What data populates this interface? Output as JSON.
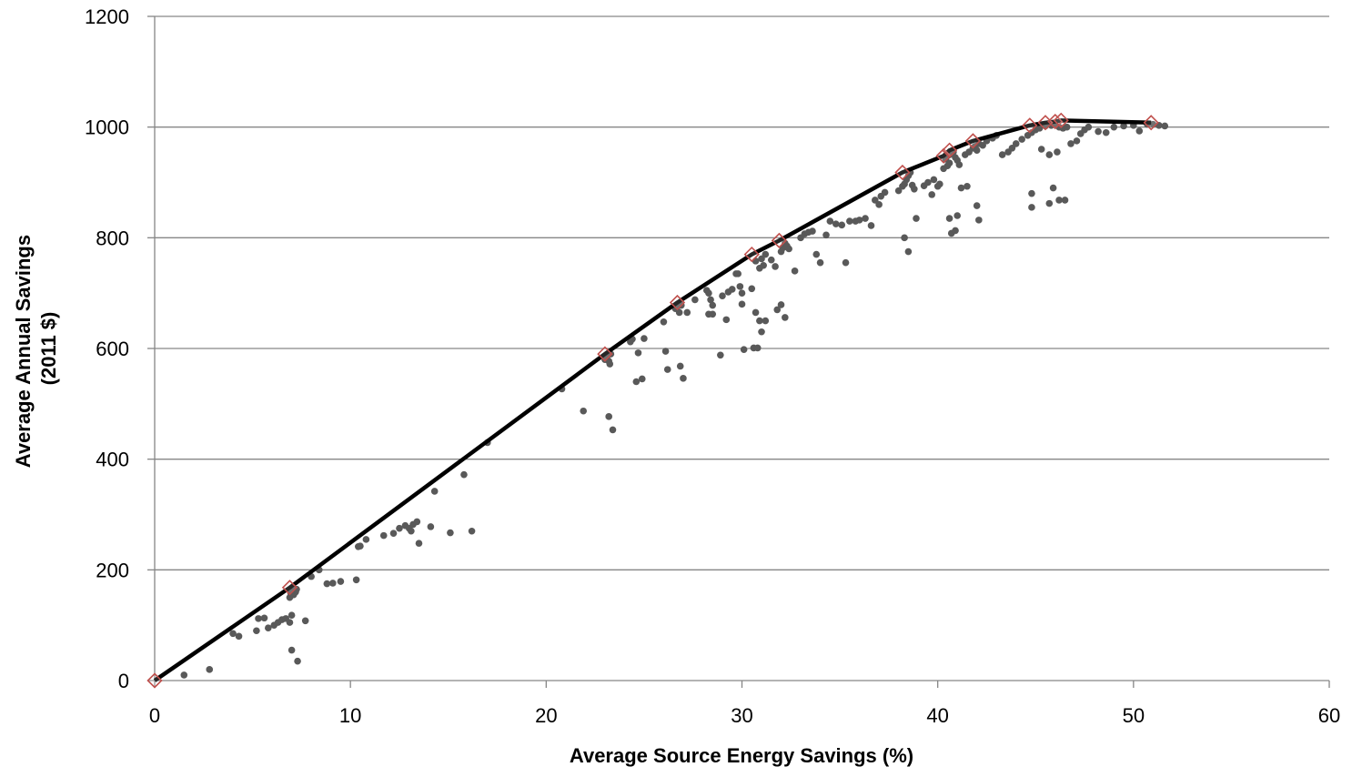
{
  "chart_data": {
    "type": "scatter",
    "xlabel": "Average Source Energy Savings (%)",
    "ylabel_lines": [
      "Average Annual Savings",
      "(2011 $)"
    ],
    "xlim": [
      0,
      60
    ],
    "ylim": [
      0,
      1200
    ],
    "x_ticks": [
      0,
      10,
      20,
      30,
      40,
      50,
      60
    ],
    "y_ticks": [
      0,
      200,
      400,
      600,
      800,
      1000,
      1200
    ],
    "grid": "horizontal",
    "legend": "none",
    "colors": {
      "points": "#595959",
      "frontier_line": "#000000",
      "frontier_markers": "#c0504d",
      "gridlines": "#868686",
      "axes": "#868686"
    },
    "series": [
      {
        "kind": "points",
        "values": [
          [
            1.5,
            10
          ],
          [
            2.8,
            20
          ],
          [
            4.0,
            85
          ],
          [
            4.3,
            80
          ],
          [
            5.2,
            90
          ],
          [
            5.3,
            112
          ],
          [
            5.6,
            113
          ],
          [
            5.8,
            95
          ],
          [
            6.1,
            100
          ],
          [
            6.3,
            105
          ],
          [
            6.5,
            110
          ],
          [
            6.7,
            112
          ],
          [
            6.9,
            105
          ],
          [
            7.0,
            118
          ],
          [
            7.0,
            55
          ],
          [
            7.3,
            35
          ],
          [
            7.7,
            108
          ],
          [
            6.9,
            150
          ],
          [
            7.1,
            155
          ],
          [
            7.2,
            160
          ],
          [
            7.0,
            163
          ],
          [
            6.95,
            158
          ],
          [
            7.25,
            165
          ],
          [
            8.0,
            188
          ],
          [
            8.4,
            200
          ],
          [
            8.8,
            175
          ],
          [
            9.1,
            176
          ],
          [
            9.5,
            179
          ],
          [
            10.3,
            182
          ],
          [
            10.4,
            242
          ],
          [
            10.5,
            243
          ],
          [
            10.8,
            255
          ],
          [
            11.7,
            262
          ],
          [
            12.2,
            266
          ],
          [
            12.5,
            275
          ],
          [
            12.8,
            280
          ],
          [
            13.0,
            275
          ],
          [
            13.2,
            282
          ],
          [
            13.4,
            287
          ],
          [
            13.5,
            248
          ],
          [
            13.1,
            270
          ],
          [
            14.1,
            278
          ],
          [
            14.3,
            342
          ],
          [
            15.1,
            267
          ],
          [
            15.8,
            372
          ],
          [
            16.2,
            270
          ],
          [
            17.0,
            430
          ],
          [
            20.8,
            527
          ],
          [
            21.9,
            487
          ],
          [
            23.0,
            580
          ],
          [
            23.1,
            585
          ],
          [
            23.2,
            577
          ],
          [
            23.25,
            572
          ],
          [
            23.3,
            590
          ],
          [
            23.2,
            477
          ],
          [
            23.4,
            453
          ],
          [
            24.3,
            612
          ],
          [
            24.4,
            617
          ],
          [
            24.6,
            540
          ],
          [
            24.7,
            592
          ],
          [
            24.9,
            545
          ],
          [
            25.0,
            618
          ],
          [
            26.0,
            648
          ],
          [
            26.1,
            595
          ],
          [
            26.2,
            562
          ],
          [
            26.6,
            672
          ],
          [
            26.7,
            676
          ],
          [
            26.8,
            665
          ],
          [
            26.9,
            678
          ],
          [
            26.85,
            568
          ],
          [
            27.0,
            546
          ],
          [
            27.2,
            665
          ],
          [
            27.6,
            688
          ],
          [
            28.2,
            705
          ],
          [
            28.3,
            700
          ],
          [
            28.4,
            688
          ],
          [
            28.5,
            678
          ],
          [
            28.3,
            662
          ],
          [
            28.5,
            662
          ],
          [
            28.9,
            588
          ],
          [
            29.0,
            695
          ],
          [
            29.2,
            652
          ],
          [
            29.3,
            702
          ],
          [
            29.5,
            707
          ],
          [
            29.7,
            735
          ],
          [
            29.8,
            735
          ],
          [
            29.9,
            712
          ],
          [
            30.0,
            700
          ],
          [
            30.0,
            680
          ],
          [
            30.1,
            598
          ],
          [
            30.6,
            601
          ],
          [
            30.8,
            601
          ],
          [
            30.5,
            708
          ],
          [
            30.7,
            665
          ],
          [
            30.9,
            650
          ],
          [
            31.0,
            630
          ],
          [
            31.2,
            650
          ],
          [
            30.7,
            758
          ],
          [
            30.9,
            745
          ],
          [
            31.0,
            762
          ],
          [
            31.1,
            750
          ],
          [
            31.2,
            770
          ],
          [
            31.5,
            760
          ],
          [
            31.7,
            748
          ],
          [
            31.8,
            670
          ],
          [
            32.0,
            679
          ],
          [
            32.2,
            656
          ],
          [
            32.0,
            775
          ],
          [
            32.1,
            782
          ],
          [
            32.2,
            790
          ],
          [
            32.3,
            785
          ],
          [
            32.4,
            780
          ],
          [
            32.7,
            740
          ],
          [
            33.0,
            800
          ],
          [
            33.2,
            807
          ],
          [
            33.4,
            810
          ],
          [
            33.6,
            812
          ],
          [
            33.8,
            770
          ],
          [
            34.0,
            755
          ],
          [
            34.3,
            805
          ],
          [
            34.5,
            830
          ],
          [
            34.8,
            825
          ],
          [
            35.1,
            823
          ],
          [
            35.3,
            755
          ],
          [
            35.5,
            830
          ],
          [
            35.8,
            830
          ],
          [
            36.0,
            832
          ],
          [
            36.3,
            835
          ],
          [
            36.6,
            822
          ],
          [
            36.8,
            868
          ],
          [
            37.0,
            860
          ],
          [
            37.1,
            875
          ],
          [
            37.3,
            882
          ],
          [
            38.0,
            885
          ],
          [
            38.2,
            893
          ],
          [
            38.3,
            897
          ],
          [
            38.4,
            905
          ],
          [
            38.5,
            912
          ],
          [
            38.6,
            918
          ],
          [
            38.7,
            895
          ],
          [
            38.8,
            888
          ],
          [
            38.3,
            800
          ],
          [
            38.5,
            775
          ],
          [
            38.9,
            835
          ],
          [
            39.3,
            894
          ],
          [
            39.5,
            900
          ],
          [
            39.7,
            878
          ],
          [
            39.8,
            905
          ],
          [
            40.0,
            893
          ],
          [
            40.1,
            897
          ],
          [
            40.3,
            925
          ],
          [
            40.5,
            930
          ],
          [
            40.6,
            935
          ],
          [
            40.4,
            942
          ],
          [
            40.5,
            948
          ],
          [
            40.6,
            950
          ],
          [
            40.7,
            952
          ],
          [
            40.8,
            955
          ],
          [
            40.9,
            945
          ],
          [
            41.0,
            940
          ],
          [
            41.1,
            932
          ],
          [
            40.6,
            835
          ],
          [
            40.7,
            808
          ],
          [
            40.9,
            813
          ],
          [
            41.0,
            840
          ],
          [
            41.2,
            890
          ],
          [
            41.5,
            893
          ],
          [
            41.4,
            950
          ],
          [
            41.6,
            955
          ],
          [
            41.8,
            962
          ],
          [
            41.9,
            965
          ],
          [
            42.0,
            958
          ],
          [
            42.1,
            970
          ],
          [
            42.3,
            967
          ],
          [
            42.0,
            858
          ],
          [
            42.1,
            832
          ],
          [
            42.5,
            975
          ],
          [
            42.8,
            980
          ],
          [
            43.0,
            985
          ],
          [
            43.3,
            950
          ],
          [
            43.6,
            955
          ],
          [
            43.8,
            962
          ],
          [
            44.0,
            970
          ],
          [
            44.3,
            978
          ],
          [
            44.6,
            985
          ],
          [
            44.8,
            990
          ],
          [
            45.0,
            995
          ],
          [
            45.1,
            1000
          ],
          [
            45.2,
            998
          ],
          [
            45.5,
            1002
          ],
          [
            45.8,
            1003
          ],
          [
            46.0,
            1005
          ],
          [
            46.2,
            1000
          ],
          [
            46.4,
            998
          ],
          [
            46.6,
            1000
          ],
          [
            45.3,
            960
          ],
          [
            45.7,
            950
          ],
          [
            46.1,
            955
          ],
          [
            44.8,
            880
          ],
          [
            44.8,
            855
          ],
          [
            45.7,
            862
          ],
          [
            45.9,
            890
          ],
          [
            46.2,
            868
          ],
          [
            46.5,
            868
          ],
          [
            46.8,
            970
          ],
          [
            47.1,
            975
          ],
          [
            47.3,
            988
          ],
          [
            47.5,
            995
          ],
          [
            47.7,
            1000
          ],
          [
            48.2,
            992
          ],
          [
            48.6,
            990
          ],
          [
            49.0,
            1000
          ],
          [
            49.5,
            1002
          ],
          [
            50.0,
            1003
          ],
          [
            50.3,
            993
          ],
          [
            50.7,
            1005
          ],
          [
            51.0,
            1005
          ],
          [
            51.3,
            1003
          ],
          [
            51.6,
            1002
          ]
        ]
      },
      {
        "kind": "frontier",
        "x": [
          0,
          6.9,
          23.0,
          26.7,
          30.5,
          31.9,
          38.2,
          40.3,
          40.6,
          41.8,
          44.7,
          45.5,
          46.0,
          46.3,
          50.9
        ],
        "y": [
          0,
          168,
          590,
          683,
          770,
          795,
          918,
          948,
          958,
          975,
          1003,
          1008,
          1010,
          1012,
          1008
        ]
      }
    ]
  }
}
